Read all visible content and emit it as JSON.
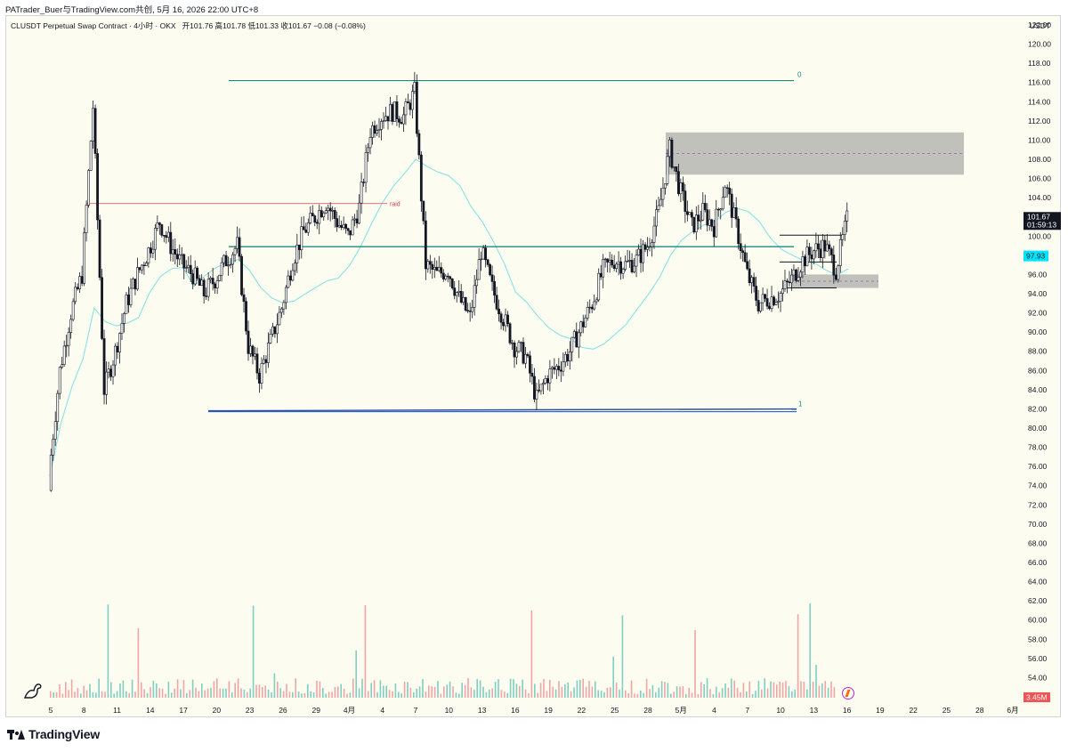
{
  "header": {
    "credit": "PATrader_Buer与TradingView.com共创, 5月 16, 2026 22:00 UTC+8"
  },
  "legend": {
    "symbol": "CLUSDT Perpetual Swap Contract",
    "interval": "4小时",
    "exchange": "OKX",
    "open_label": "开",
    "open": "101.76",
    "high_label": "高",
    "high": "101.78",
    "low_label": "低",
    "low": "101.33",
    "close_label": "收",
    "close": "101.67",
    "change": "−0.08 (−0.08%)"
  },
  "price_axis": {
    "currency": "USDT",
    "labels": [
      "122.00",
      "120.00",
      "118.00",
      "116.00",
      "114.00",
      "112.00",
      "110.00",
      "108.00",
      "106.00",
      "104.00",
      "102.00",
      "100.00",
      "98.00",
      "96.00",
      "94.00",
      "92.00",
      "90.00",
      "88.00",
      "86.00",
      "84.00",
      "82.00",
      "80.00",
      "78.00",
      "76.00",
      "74.00",
      "72.00",
      "70.00",
      "68.00",
      "66.00",
      "64.00",
      "62.00",
      "60.00",
      "58.00",
      "56.00",
      "54.00",
      "52.00"
    ],
    "current_price": "101.67",
    "countdown": "01:59:13",
    "ma_value": "97.93",
    "volume_value": "3.45M"
  },
  "time_axis": {
    "labels": [
      "5",
      "8",
      "11",
      "14",
      "17",
      "20",
      "23",
      "26",
      "29",
      "4月",
      "4",
      "7",
      "10",
      "13",
      "16",
      "19",
      "22",
      "25",
      "28",
      "5月",
      "4",
      "7",
      "10",
      "13",
      "16",
      "19",
      "22",
      "25",
      "28",
      "6月"
    ]
  },
  "drawings": {
    "raid_label": "raid",
    "fib_top_label": "0",
    "fib_bottom_label": "1"
  },
  "footer": {
    "brand": "TradingView"
  },
  "colors": {
    "background": "#fdfcf0",
    "candle": "#131722",
    "ma_line": "#7fe0e6",
    "fib_line": "#1f8a7a",
    "support_line": "#1e4fb0",
    "raid_line": "#e8707a",
    "zone_fill": "#9a9a9a",
    "zone_mid": "#9b59b6",
    "volume_up": "#7fcfc3",
    "volume_down": "#f2a5a5",
    "ma_badge": "#00e5ff"
  },
  "chart_data": {
    "type": "candlestick",
    "title": "CLUSDT Perpetual Swap Contract · 4小时 · OKX",
    "ylim": [
      52,
      123
    ],
    "y_axis": "right",
    "series": [
      {
        "name": "CLUSDT",
        "kind": "price",
        "points": [
          [
            "3月5日",
            75.0
          ],
          [
            "3月6日",
            86.0
          ],
          [
            "3月7日",
            92.0
          ],
          [
            "3月8日",
            96.0
          ],
          [
            "3月9日",
            113.5
          ],
          [
            "3月10日",
            84.0
          ],
          [
            "3月11日",
            88.0
          ],
          [
            "3月12日",
            93.0
          ],
          [
            "3月13日",
            96.0
          ],
          [
            "3月14日",
            98.5
          ],
          [
            "3月15日",
            101.5
          ],
          [
            "3月16日",
            99.0
          ],
          [
            "3月17日",
            97.0
          ],
          [
            "3月18日",
            96.0
          ],
          [
            "3月19日",
            94.0
          ],
          [
            "3月20日",
            95.5
          ],
          [
            "3月21日",
            97.5
          ],
          [
            "3月22日",
            99.0
          ],
          [
            "3月23日",
            88.5
          ],
          [
            "3月24日",
            85.5
          ],
          [
            "3月25日",
            89.0
          ],
          [
            "3月26日",
            92.5
          ],
          [
            "3月27日",
            97.5
          ],
          [
            "3月28日",
            100.5
          ],
          [
            "3月29日",
            102.0
          ],
          [
            "3月30日",
            103.5
          ],
          [
            "3月31日",
            101.5
          ],
          [
            "4月1日",
            100.0
          ],
          [
            "4月2日",
            103.0
          ],
          [
            "4月3日",
            111.0
          ],
          [
            "4月4日",
            112.5
          ],
          [
            "4月5日",
            113.0
          ],
          [
            "4月6日",
            112.5
          ],
          [
            "4月7日",
            115.0
          ],
          [
            "4月8日",
            97.0
          ],
          [
            "4月9日",
            96.0
          ],
          [
            "4月10日",
            96.5
          ],
          [
            "4月11日",
            93.5
          ],
          [
            "4月12日",
            91.5
          ],
          [
            "4月13日",
            98.5
          ],
          [
            "4月14日",
            94.5
          ],
          [
            "4月15日",
            91.5
          ],
          [
            "4月16日",
            88.5
          ],
          [
            "4月17日",
            87.5
          ],
          [
            "4月18日",
            83.0
          ],
          [
            "4月19日",
            85.5
          ],
          [
            "4月20日",
            86.5
          ],
          [
            "4月21日",
            88.0
          ],
          [
            "4月22日",
            90.5
          ],
          [
            "4月23日",
            93.0
          ],
          [
            "4月24日",
            96.5
          ],
          [
            "4月25日",
            97.5
          ],
          [
            "4月26日",
            97.0
          ],
          [
            "4月27日",
            97.5
          ],
          [
            "4月28日",
            99.0
          ],
          [
            "4月29日",
            102.5
          ],
          [
            "4月30日",
            109.0
          ],
          [
            "5月1日",
            104.5
          ],
          [
            "5月2日",
            101.0
          ],
          [
            "5月3日",
            102.5
          ],
          [
            "5月4日",
            101.0
          ],
          [
            "5月5日",
            105.5
          ],
          [
            "5月6日",
            101.0
          ],
          [
            "5月7日",
            96.0
          ],
          [
            "5月8日",
            93.0
          ],
          [
            "5月9日",
            93.5
          ],
          [
            "5月10日",
            94.0
          ],
          [
            "5月11日",
            95.5
          ],
          [
            "5月12日",
            97.5
          ],
          [
            "5月13日",
            98.5
          ],
          [
            "5月14日",
            99.0
          ],
          [
            "5月15日",
            96.5
          ],
          [
            "5月16日",
            101.67
          ]
        ]
      },
      {
        "name": "MA",
        "kind": "line",
        "last": 97.93
      },
      {
        "name": "Volume",
        "kind": "bar",
        "last": "3.45M"
      }
    ],
    "levels": [
      {
        "label": "0",
        "price": 116.2
      },
      {
        "price": 98.9
      },
      {
        "label": "1",
        "price": 81.8
      },
      {
        "label": "raid",
        "price": 103.4
      }
    ],
    "zones": [
      {
        "top": 110.8,
        "bottom": 106.4
      },
      {
        "top": 96.0,
        "bottom": 94.6
      }
    ]
  }
}
